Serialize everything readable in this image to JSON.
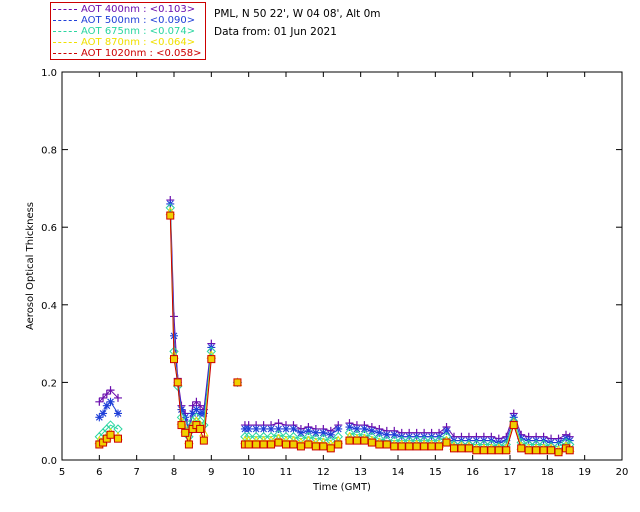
{
  "header": {
    "location": "PML, N 50 22', W 04 08', Alt 0m",
    "date": "Data from: 01 Jun 2021"
  },
  "legend": [
    {
      "label": "AOT  400nm : <0.103>",
      "color": "#6a0dad"
    },
    {
      "label": "AOT  500nm : <0.090>",
      "color": "#1f3fd8"
    },
    {
      "label": "AOT  675nm : <0.074>",
      "color": "#2ad6a0"
    },
    {
      "label": "AOT  870nm : <0.064>",
      "color": "#f0e000"
    },
    {
      "label": "AOT 1020nm : <0.058>",
      "color": "#cc0000"
    }
  ],
  "chart_data": {
    "type": "line",
    "xlabel": "Time (GMT)",
    "ylabel": "Aerosol Optical Thickness",
    "xlim": [
      5,
      20
    ],
    "ylim": [
      0,
      1.0
    ],
    "xticks": [
      5,
      6,
      7,
      8,
      9,
      10,
      11,
      12,
      13,
      14,
      15,
      16,
      17,
      18,
      19,
      20
    ],
    "yticks": [
      0.0,
      0.2,
      0.4,
      0.6,
      0.8,
      1.0
    ],
    "yticklabels": [
      "0.0",
      "0.2",
      "0.4",
      "0.6",
      "0.8",
      "1.0"
    ],
    "x": [
      6.0,
      6.1,
      6.2,
      6.3,
      6.5,
      7.9,
      8.0,
      8.1,
      8.2,
      8.3,
      8.4,
      8.5,
      8.6,
      8.7,
      8.8,
      9.0,
      9.7,
      9.9,
      10.0,
      10.2,
      10.4,
      10.6,
      10.8,
      11.0,
      11.2,
      11.4,
      11.6,
      11.8,
      12.0,
      12.2,
      12.4,
      12.7,
      12.9,
      13.1,
      13.3,
      13.5,
      13.7,
      13.9,
      14.1,
      14.3,
      14.5,
      14.7,
      14.9,
      15.1,
      15.3,
      15.5,
      15.7,
      15.9,
      16.1,
      16.3,
      16.5,
      16.7,
      16.9,
      17.1,
      17.3,
      17.5,
      17.7,
      17.9,
      18.1,
      18.3,
      18.5,
      18.6
    ],
    "segments": [
      [
        0,
        4
      ],
      [
        5,
        15
      ],
      [
        16,
        16
      ],
      [
        17,
        30
      ],
      [
        31,
        61
      ]
    ],
    "series": [
      {
        "name": "AOT  400nm : <0.103>",
        "marker": "plus",
        "color": "#6a0dad",
        "values": [
          0.15,
          0.16,
          0.17,
          0.18,
          0.16,
          0.67,
          0.37,
          0.21,
          0.14,
          0.12,
          0.08,
          0.14,
          0.15,
          0.14,
          0.13,
          0.3,
          0.2,
          0.09,
          0.09,
          0.09,
          0.09,
          0.09,
          0.095,
          0.09,
          0.09,
          0.08,
          0.085,
          0.08,
          0.08,
          0.075,
          0.09,
          0.095,
          0.09,
          0.09,
          0.085,
          0.08,
          0.075,
          0.075,
          0.07,
          0.07,
          0.07,
          0.07,
          0.07,
          0.07,
          0.085,
          0.06,
          0.06,
          0.06,
          0.06,
          0.06,
          0.06,
          0.055,
          0.06,
          0.12,
          0.065,
          0.06,
          0.06,
          0.06,
          0.055,
          0.055,
          0.065,
          0.06
        ]
      },
      {
        "name": "AOT  500nm : <0.090>",
        "marker": "star",
        "color": "#1f3fd8",
        "values": [
          0.11,
          0.12,
          0.14,
          0.15,
          0.12,
          0.66,
          0.32,
          0.2,
          0.13,
          0.11,
          0.07,
          0.12,
          0.13,
          0.12,
          0.12,
          0.29,
          0.2,
          0.08,
          0.08,
          0.08,
          0.08,
          0.08,
          0.08,
          0.08,
          0.08,
          0.07,
          0.075,
          0.07,
          0.07,
          0.065,
          0.08,
          0.085,
          0.08,
          0.08,
          0.075,
          0.07,
          0.065,
          0.065,
          0.06,
          0.06,
          0.06,
          0.06,
          0.06,
          0.06,
          0.075,
          0.05,
          0.05,
          0.05,
          0.05,
          0.05,
          0.05,
          0.045,
          0.05,
          0.11,
          0.055,
          0.05,
          0.05,
          0.05,
          0.045,
          0.045,
          0.055,
          0.05
        ]
      },
      {
        "name": "AOT  675nm : <0.074>",
        "marker": "diamond",
        "color": "#2ad6a0",
        "values": [
          0.06,
          0.07,
          0.08,
          0.09,
          0.08,
          0.65,
          0.28,
          0.19,
          0.11,
          0.09,
          0.06,
          0.1,
          0.11,
          0.1,
          0.09,
          0.28,
          0.2,
          0.06,
          0.06,
          0.06,
          0.06,
          0.06,
          0.065,
          0.06,
          0.06,
          0.055,
          0.06,
          0.055,
          0.055,
          0.05,
          0.06,
          0.07,
          0.065,
          0.065,
          0.06,
          0.055,
          0.05,
          0.05,
          0.05,
          0.05,
          0.05,
          0.05,
          0.05,
          0.05,
          0.06,
          0.04,
          0.04,
          0.04,
          0.04,
          0.04,
          0.04,
          0.035,
          0.04,
          0.1,
          0.045,
          0.04,
          0.04,
          0.04,
          0.035,
          0.035,
          0.045,
          0.04
        ]
      },
      {
        "name": "AOT  870nm : <0.064>",
        "marker": "triangle",
        "color": "#f0e000",
        "values": [
          0.05,
          0.05,
          0.06,
          0.07,
          0.06,
          0.64,
          0.27,
          0.2,
          0.1,
          0.08,
          0.05,
          0.09,
          0.1,
          0.09,
          0.07,
          0.27,
          0.2,
          0.05,
          0.05,
          0.05,
          0.05,
          0.05,
          0.055,
          0.05,
          0.05,
          0.045,
          0.05,
          0.045,
          0.045,
          0.04,
          0.05,
          0.06,
          0.055,
          0.055,
          0.05,
          0.045,
          0.04,
          0.04,
          0.04,
          0.04,
          0.04,
          0.04,
          0.04,
          0.04,
          0.05,
          0.035,
          0.035,
          0.035,
          0.03,
          0.03,
          0.03,
          0.03,
          0.03,
          0.095,
          0.035,
          0.03,
          0.03,
          0.03,
          0.03,
          0.025,
          0.035,
          0.03
        ]
      },
      {
        "name": "AOT 1020nm : <0.058>",
        "marker": "square",
        "color": "#cc0000",
        "values": [
          0.04,
          0.045,
          0.055,
          0.065,
          0.055,
          0.63,
          0.26,
          0.2,
          0.09,
          0.07,
          0.04,
          0.08,
          0.09,
          0.08,
          0.05,
          0.26,
          0.2,
          0.04,
          0.04,
          0.04,
          0.04,
          0.04,
          0.045,
          0.04,
          0.04,
          0.035,
          0.04,
          0.035,
          0.035,
          0.03,
          0.04,
          0.05,
          0.05,
          0.05,
          0.045,
          0.04,
          0.04,
          0.035,
          0.035,
          0.035,
          0.035,
          0.035,
          0.035,
          0.035,
          0.045,
          0.03,
          0.03,
          0.03,
          0.025,
          0.025,
          0.025,
          0.025,
          0.025,
          0.09,
          0.03,
          0.025,
          0.025,
          0.025,
          0.025,
          0.02,
          0.03,
          0.025
        ]
      }
    ]
  }
}
